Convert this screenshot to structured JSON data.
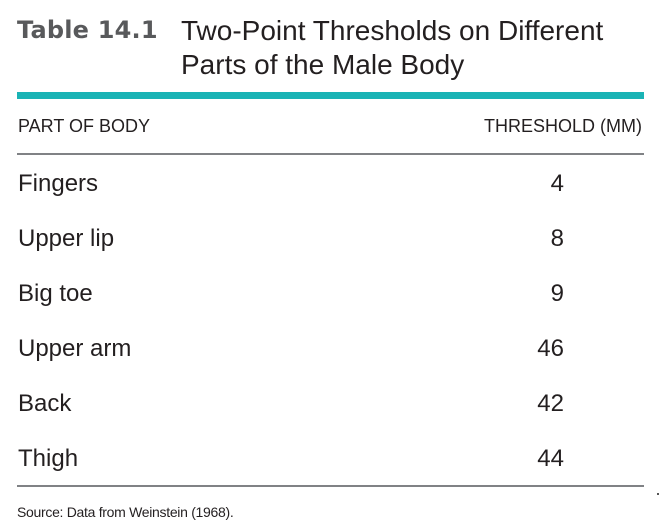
{
  "table": {
    "label": "Table 14.1",
    "title": "Two-Point Thresholds on Different Parts of the Male Body",
    "headers": [
      "PART OF BODY",
      "THRESHOLD (MM)"
    ],
    "rows": [
      {
        "part": "Fingers",
        "threshold": "4"
      },
      {
        "part": "Upper lip",
        "threshold": "8"
      },
      {
        "part": "Big toe",
        "threshold": "9"
      },
      {
        "part": "Upper arm",
        "threshold": "46"
      },
      {
        "part": "Back",
        "threshold": "42"
      },
      {
        "part": "Thigh",
        "threshold": "44"
      }
    ],
    "source": "Source: Data from Weinstein (1968)."
  },
  "colors": {
    "accent": "#1ab3b5",
    "label": "#58595b",
    "text": "#231f20",
    "rule": "#808285"
  }
}
